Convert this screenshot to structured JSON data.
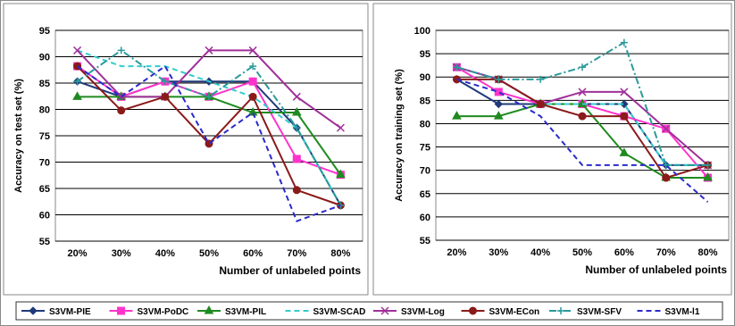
{
  "legend": [
    {
      "name": "S3VM-PIE",
      "color": "#1f3a7a",
      "marker": "diamond",
      "dash": "solid"
    },
    {
      "name": "S3VM-PoDC",
      "color": "#ff33cc",
      "marker": "square",
      "dash": "solid"
    },
    {
      "name": "S3VM-PIL",
      "color": "#1f8a1f",
      "marker": "triangle",
      "dash": "solid"
    },
    {
      "name": "S3VM-SCAD",
      "color": "#33cccc",
      "marker": "none",
      "dash": "dashed"
    },
    {
      "name": "S3VM-Log",
      "color": "#a0309a",
      "marker": "x",
      "dash": "solid"
    },
    {
      "name": "S3VM-ECon",
      "color": "#8b1a1a",
      "marker": "circle",
      "dash": "solid"
    },
    {
      "name": "S3VM-SFV",
      "color": "#2a9a9a",
      "marker": "plus",
      "dash": "dashdot"
    },
    {
      "name": "S3VM-l1",
      "color": "#2a2acc",
      "marker": "none",
      "dash": "dashed"
    }
  ],
  "chart_data": [
    {
      "type": "line",
      "title": "",
      "xlabel": "Number of unlabeled points",
      "ylabel": "Accuracy on test set (%)",
      "categories": [
        "20%",
        "30%",
        "40%",
        "50%",
        "60%",
        "70%",
        "80%"
      ],
      "ylim": [
        55,
        95
      ],
      "yticks": [
        55,
        60,
        65,
        70,
        75,
        80,
        85,
        90,
        95
      ],
      "grid": true,
      "series": [
        {
          "name": "S3VM-PIE",
          "values": [
            85.3,
            82.4,
            85.3,
            85.3,
            85.3,
            76.5,
            61.8
          ]
        },
        {
          "name": "S3VM-PoDC",
          "values": [
            88.2,
            82.4,
            85.3,
            82.4,
            85.3,
            70.6,
            67.6
          ]
        },
        {
          "name": "S3VM-PIL",
          "values": [
            82.4,
            82.4,
            82.4,
            82.4,
            79.4,
            79.4,
            67.6
          ]
        },
        {
          "name": "S3VM-SCAD",
          "values": [
            91.2,
            88.2,
            88.2,
            85.3,
            82.4,
            76.5,
            61.8
          ]
        },
        {
          "name": "S3VM-Log",
          "values": [
            91.2,
            82.4,
            82.4,
            91.2,
            91.2,
            82.4,
            76.5
          ]
        },
        {
          "name": "S3VM-ECon",
          "values": [
            88.2,
            79.8,
            82.4,
            73.5,
            82.4,
            64.7,
            61.8
          ]
        },
        {
          "name": "S3VM-SFV",
          "values": [
            85.3,
            91.2,
            85.3,
            82.4,
            88.2,
            76.5,
            61.8
          ]
        },
        {
          "name": "S3VM-l1",
          "values": [
            88.2,
            82.4,
            88.2,
            73.5,
            79.4,
            58.8,
            61.8
          ]
        }
      ]
    },
    {
      "type": "line",
      "title": "",
      "xlabel": "Number of unlabeled points",
      "ylabel": "Accuracy on training set (%)",
      "categories": [
        "20%",
        "30%",
        "40%",
        "50%",
        "60%",
        "70%",
        "80%"
      ],
      "ylim": [
        55,
        100
      ],
      "yticks": [
        55,
        60,
        65,
        70,
        75,
        80,
        85,
        90,
        95,
        100
      ],
      "grid": true,
      "series": [
        {
          "name": "S3VM-PIE",
          "values": [
            89.5,
            84.2,
            84.2,
            84.2,
            84.2,
            71.1,
            71.1
          ]
        },
        {
          "name": "S3VM-PoDC",
          "values": [
            92.1,
            86.8,
            84.2,
            84.2,
            81.6,
            78.9,
            68.4
          ]
        },
        {
          "name": "S3VM-PIL",
          "values": [
            81.6,
            81.6,
            84.2,
            84.2,
            73.7,
            68.4,
            68.4
          ]
        },
        {
          "name": "S3VM-SCAD",
          "values": [
            92.1,
            89.5,
            84.2,
            84.2,
            84.2,
            71.1,
            71.1
          ]
        },
        {
          "name": "S3VM-Log",
          "values": [
            92.1,
            89.5,
            84.2,
            86.8,
            86.8,
            78.9,
            71.1
          ]
        },
        {
          "name": "S3VM-ECon",
          "values": [
            89.5,
            89.5,
            84.2,
            81.6,
            81.6,
            68.4,
            71.1
          ]
        },
        {
          "name": "S3VM-SFV",
          "values": [
            92.1,
            89.5,
            89.5,
            92.1,
            97.4,
            71.1,
            71.1
          ]
        },
        {
          "name": "S3VM-l1",
          "values": [
            89.5,
            86.8,
            81.6,
            71.1,
            71.1,
            71.1,
            63.2
          ]
        }
      ]
    }
  ]
}
